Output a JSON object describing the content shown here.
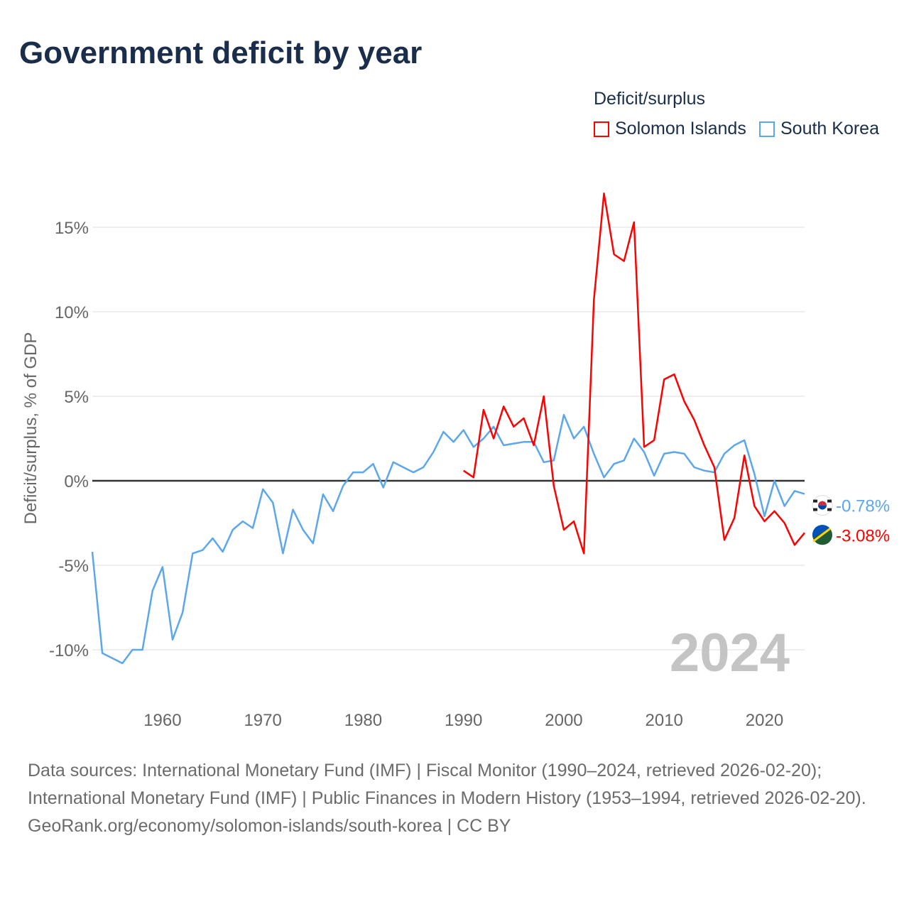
{
  "title": "Government deficit by year",
  "legend": {
    "title": "Deficit/surplus",
    "items": [
      {
        "label": "Solomon Islands",
        "color": "#ff0000"
      },
      {
        "label": "South Korea",
        "color": "#5ca7ec"
      }
    ]
  },
  "footer": {
    "sources": "Data sources: International Monetary Fund (IMF) | Fiscal Monitor (1990–2024, retrieved 2026-02-20); International Monetary Fund (IMF) | Public Finances in Modern History (1953–1994, retrieved 2026-02-20).",
    "credit": "GeoRank.org/economy/solomon-islands/south-korea | CC BY"
  },
  "chart_data": {
    "type": "line",
    "title": "Government deficit by year",
    "ylabel": "Deficit/surplus, % of GDP",
    "xlabel": "",
    "year_watermark": "2024",
    "xlim": [
      1953,
      2024
    ],
    "ylim": [
      -11.9,
      17.5
    ],
    "xticks": [
      1960,
      1970,
      1980,
      1990,
      2000,
      2010,
      2020
    ],
    "yticks": [
      15,
      10,
      5,
      0,
      -5,
      -10
    ],
    "ytick_labels": [
      "15%",
      "10%",
      "5%",
      "0%",
      "-5%",
      "-10%"
    ],
    "grid": true,
    "legend_position": "top-right",
    "series": [
      {
        "name": "South Korea",
        "color": "#5ca7ec",
        "end_label": "-0.78%",
        "start_year": 1953,
        "values": [
          -4.2,
          -10.2,
          -10.5,
          -10.8,
          -10.0,
          -10.0,
          -6.5,
          -5.1,
          -9.4,
          -7.8,
          -4.3,
          -4.1,
          -3.4,
          -4.2,
          -2.9,
          -2.4,
          -2.8,
          -0.5,
          -1.3,
          -4.3,
          -1.7,
          -2.9,
          -3.7,
          -0.8,
          -1.8,
          -0.3,
          0.5,
          0.5,
          1.0,
          -0.4,
          1.1,
          0.8,
          0.5,
          0.8,
          1.7,
          2.9,
          2.3,
          3.0,
          2.0,
          2.5,
          3.2,
          2.1,
          2.2,
          2.3,
          2.3,
          1.1,
          1.2,
          3.9,
          2.5,
          3.2,
          1.6,
          0.2,
          1.0,
          1.2,
          2.5,
          1.7,
          0.3,
          1.6,
          1.7,
          1.6,
          0.8,
          0.6,
          0.5,
          1.6,
          2.1,
          2.4,
          0.4,
          -2.1,
          0.0,
          -1.5,
          -0.6,
          -0.78
        ]
      },
      {
        "name": "Solomon Islands",
        "color": "#ff0000",
        "end_label": "-3.08%",
        "start_year": 1990,
        "values": [
          0.6,
          0.2,
          4.2,
          2.5,
          4.4,
          3.2,
          3.7,
          2.1,
          5.0,
          -0.3,
          -2.9,
          -2.4,
          -4.3,
          10.7,
          17.0,
          13.4,
          13.0,
          15.3,
          2.0,
          2.4,
          6.0,
          6.3,
          4.7,
          3.6,
          2.1,
          0.8,
          -3.5,
          -2.2,
          1.5,
          -1.5,
          -2.4,
          -1.8,
          -2.5,
          -3.8,
          -3.08
        ]
      }
    ]
  }
}
